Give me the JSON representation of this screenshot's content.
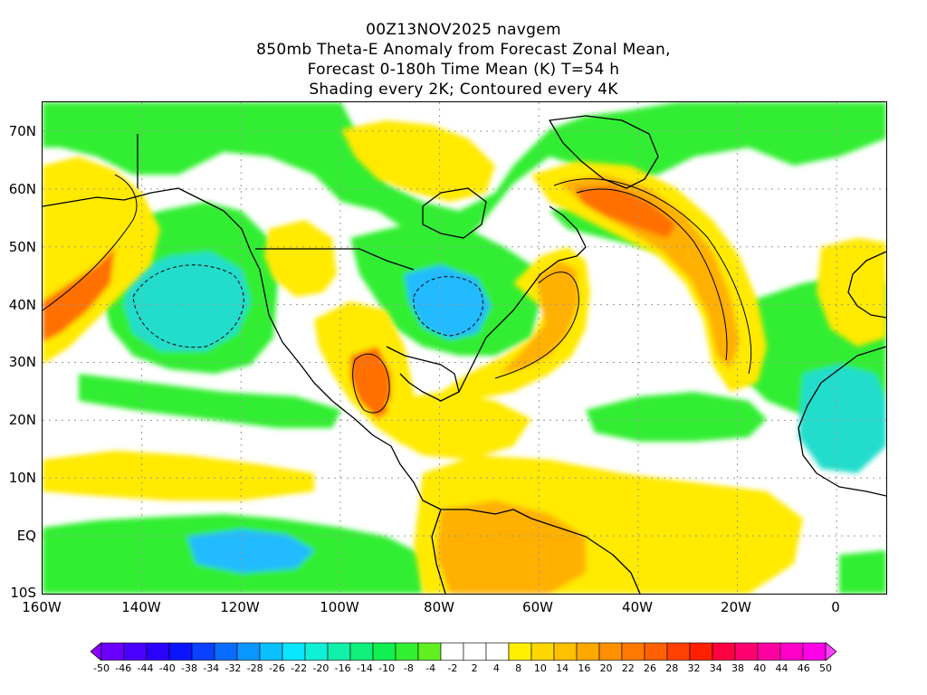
{
  "title": {
    "line1": "00Z13NOV2025 navgem",
    "line2": "850mb Theta-E Anomaly from Forecast Zonal Mean,",
    "line3": "Forecast 0-180h Time Mean (K) T=54 h",
    "line4": "Shading every 2K; Contoured every 4K"
  },
  "lat_labels": [
    "70N",
    "60N",
    "50N",
    "40N",
    "30N",
    "20N",
    "10N",
    "EQ",
    "10S"
  ],
  "lon_labels": [
    "160W",
    "140W",
    "120W",
    "100W",
    "80W",
    "60W",
    "40W",
    "20W",
    "0"
  ],
  "map_extent": {
    "lon_min": -160,
    "lon_max": 10,
    "lat_min": -10,
    "lat_max": 75
  },
  "colorbar": {
    "labels": [
      "-50",
      "-46",
      "-44",
      "-40",
      "-38",
      "-34",
      "-32",
      "-28",
      "-26",
      "-22",
      "-20",
      "-16",
      "-14",
      "-10",
      "-8",
      "-4",
      "-2",
      "2",
      "4",
      "8",
      "10",
      "14",
      "16",
      "20",
      "22",
      "26",
      "28",
      "32",
      "34",
      "38",
      "40",
      "44",
      "46",
      "50"
    ],
    "colors": [
      "#8a00ff",
      "#6a00ff",
      "#4b00ff",
      "#2a00ff",
      "#0a14ff",
      "#0a40ff",
      "#0a6cff",
      "#0a96ff",
      "#0ac0ff",
      "#0ae6ff",
      "#10f0d6",
      "#10f0a8",
      "#10f07a",
      "#10f050",
      "#30f030",
      "#60f020",
      "#ffffff",
      "#ffffff",
      "#ffffff",
      "#fff000",
      "#ffd800",
      "#ffc000",
      "#ffa800",
      "#ff9000",
      "#ff7800",
      "#ff6000",
      "#ff4000",
      "#ff2000",
      "#ff0040",
      "#ff0070",
      "#ff00a0",
      "#ff00c8",
      "#ff00e8",
      "#ff40ff"
    ]
  },
  "colors": {
    "positive_low": "#ffea00",
    "positive_mid": "#ffb000",
    "positive_high": "#ff7000",
    "positive_peak": "#e84a00",
    "negative_low": "#33ee33",
    "negative_mid": "#22dd66",
    "negative_high": "#22ddcc",
    "negative_peak": "#22bbff",
    "coastline": "#000000",
    "grid": "#9a9a9a"
  }
}
